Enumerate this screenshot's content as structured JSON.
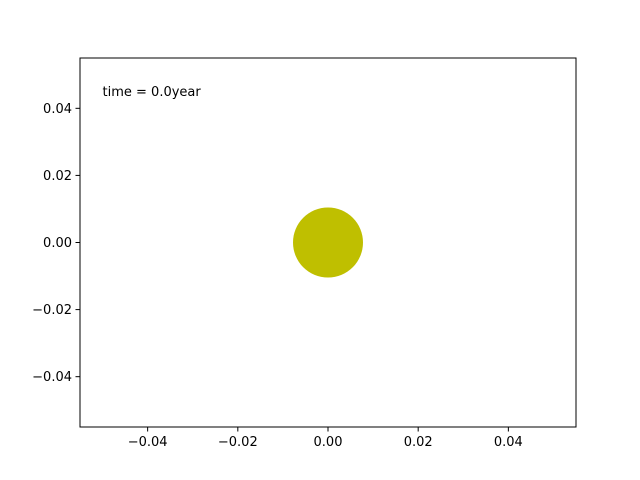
{
  "chart_data": {
    "type": "scatter",
    "title": "",
    "xlabel": "",
    "ylabel": "",
    "xlim": [
      -0.055,
      0.055
    ],
    "ylim": [
      -0.055,
      0.055
    ],
    "x_ticks": [
      -0.04,
      -0.02,
      0.0,
      0.02,
      0.04
    ],
    "x_tick_labels": [
      "−0.04",
      "−0.02",
      "0.00",
      "0.02",
      "0.04"
    ],
    "y_ticks": [
      -0.04,
      -0.02,
      0.0,
      0.02,
      0.04
    ],
    "y_tick_labels": [
      "−0.04",
      "−0.02",
      "0.00",
      "0.02",
      "0.04"
    ],
    "grid": false,
    "series": [
      {
        "points": [
          {
            "x": 0.0,
            "y": 0.0
          }
        ],
        "color": "#bfbf00"
      }
    ],
    "annotations": [
      {
        "text": "time = 0.0year",
        "x": -0.05,
        "y": 0.045
      }
    ]
  }
}
